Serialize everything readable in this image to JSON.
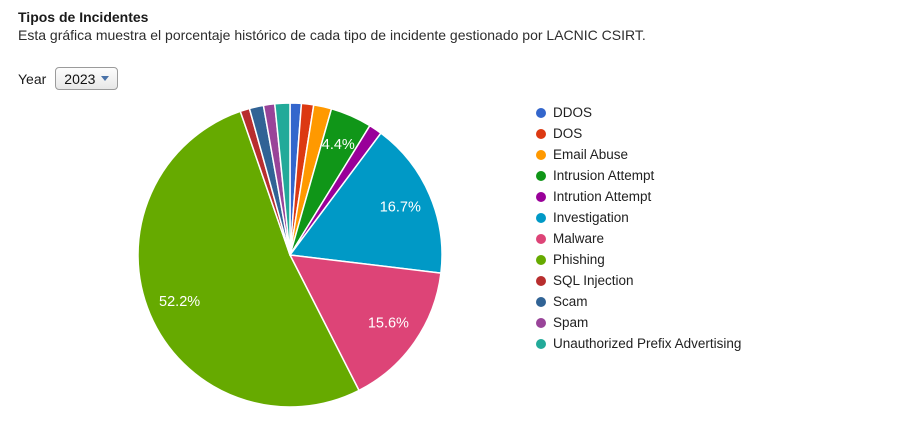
{
  "page": {
    "title": "Tipos de Incidentes",
    "subtitle": "Esta gráfica muestra el porcentaje histórico de cada tipo de incidente gestionado por LACNIC CSIRT."
  },
  "year_filter": {
    "label": "Year",
    "selected": "2023",
    "caret_icon": "caret-down-icon",
    "caret_color": "#4a72a8"
  },
  "chart_data": {
    "type": "pie",
    "title": "Tipos de Incidentes",
    "unit": "percent",
    "start_angle_deg": 0,
    "direction": "clockwise",
    "legend_position": "right",
    "slice_border_color": "#ffffff",
    "label_color": "#ffffff",
    "slices": [
      {
        "name": "DDOS",
        "value": 1.2,
        "color": "#3366CC",
        "label": ""
      },
      {
        "name": "DOS",
        "value": 1.3,
        "color": "#DC3912",
        "label": ""
      },
      {
        "name": "Email Abuse",
        "value": 1.9,
        "color": "#FF9900",
        "label": ""
      },
      {
        "name": "Intrusion Attempt",
        "value": 4.4,
        "color": "#109618",
        "label": "4.4%"
      },
      {
        "name": "Intrution Attempt",
        "value": 1.4,
        "color": "#990099",
        "label": ""
      },
      {
        "name": "Investigation",
        "value": 16.7,
        "color": "#0099C6",
        "label": "16.7%"
      },
      {
        "name": "Malware",
        "value": 15.6,
        "color": "#DD4477",
        "label": "15.6%"
      },
      {
        "name": "Phishing",
        "value": 52.2,
        "color": "#66AA00",
        "label": "52.2%"
      },
      {
        "name": "SQL Injection",
        "value": 1.0,
        "color": "#B82E2E",
        "label": ""
      },
      {
        "name": "Scam",
        "value": 1.5,
        "color": "#316395",
        "label": ""
      },
      {
        "name": "Spam",
        "value": 1.2,
        "color": "#994499",
        "label": ""
      },
      {
        "name": "Unauthorized Prefix Advertising",
        "value": 1.6,
        "color": "#22AA99",
        "label": ""
      }
    ]
  }
}
